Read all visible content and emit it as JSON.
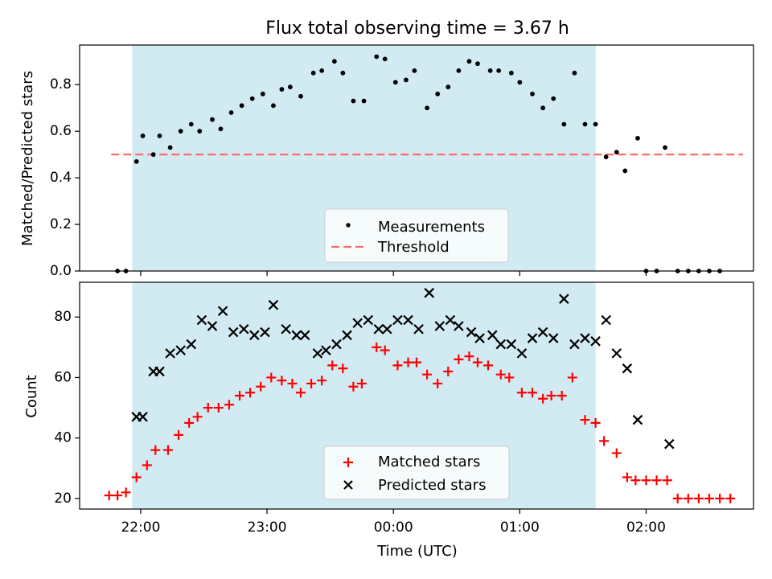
{
  "chart_data": [
    {
      "type": "scatter",
      "title": "Flux total observing time = 3.67 h",
      "xlabel": "",
      "ylabel": "Matched/Predicted stars",
      "xlim": [
        "21:31",
        "02:51"
      ],
      "ylim": [
        0,
        0.97
      ],
      "yticks": [
        0.0,
        0.2,
        0.4,
        0.6,
        0.8
      ],
      "ytick_labels": [
        "0.0",
        "0.2",
        "0.4",
        "0.6",
        "0.8"
      ],
      "xticks": [
        "22:00",
        "23:00",
        "00:00",
        "01:00",
        "02:00"
      ],
      "shaded_span": [
        "21:56",
        "01:36"
      ],
      "shaded_color": "#add8e6",
      "threshold": {
        "name": "Threshold",
        "y": 0.5,
        "x_range": [
          "21:46",
          "02:46"
        ],
        "color": "#ff6b6b"
      },
      "legend_position": "lower center",
      "series": [
        {
          "name": "Measurements",
          "color": "#000000",
          "marker": "dot",
          "points": [
            [
              "21:49",
              0.0
            ],
            [
              "21:53",
              0.0
            ],
            [
              "21:58",
              0.47
            ],
            [
              "22:01",
              0.58
            ],
            [
              "22:06",
              0.5
            ],
            [
              "22:09",
              0.58
            ],
            [
              "22:14",
              0.53
            ],
            [
              "22:19",
              0.6
            ],
            [
              "22:24",
              0.63
            ],
            [
              "22:28",
              0.6
            ],
            [
              "22:34",
              0.65
            ],
            [
              "22:38",
              0.61
            ],
            [
              "22:43",
              0.68
            ],
            [
              "22:48",
              0.71
            ],
            [
              "22:53",
              0.74
            ],
            [
              "22:58",
              0.76
            ],
            [
              "23:03",
              0.71
            ],
            [
              "23:07",
              0.78
            ],
            [
              "23:11",
              0.79
            ],
            [
              "23:16",
              0.75
            ],
            [
              "23:22",
              0.85
            ],
            [
              "23:26",
              0.86
            ],
            [
              "23:32",
              0.9
            ],
            [
              "23:36",
              0.85
            ],
            [
              "23:41",
              0.73
            ],
            [
              "23:46",
              0.73
            ],
            [
              "23:52",
              0.92
            ],
            [
              "23:56",
              0.91
            ],
            [
              "00:01",
              0.81
            ],
            [
              "00:06",
              0.82
            ],
            [
              "00:10",
              0.86
            ],
            [
              "00:16",
              0.7
            ],
            [
              "00:21",
              0.76
            ],
            [
              "00:26",
              0.79
            ],
            [
              "00:31",
              0.86
            ],
            [
              "00:36",
              0.9
            ],
            [
              "00:40",
              0.89
            ],
            [
              "00:46",
              0.86
            ],
            [
              "00:50",
              0.86
            ],
            [
              "00:56",
              0.85
            ],
            [
              "01:00",
              0.81
            ],
            [
              "01:06",
              0.76
            ],
            [
              "01:11",
              0.7
            ],
            [
              "01:16",
              0.74
            ],
            [
              "01:21",
              0.63
            ],
            [
              "01:26",
              0.85
            ],
            [
              "01:31",
              0.63
            ],
            [
              "01:36",
              0.63
            ],
            [
              "01:41",
              0.49
            ],
            [
              "01:46",
              0.51
            ],
            [
              "01:50",
              0.43
            ],
            [
              "01:56",
              0.57
            ],
            [
              "02:00",
              0.0
            ],
            [
              "02:05",
              0.0
            ],
            [
              "02:09",
              0.53
            ],
            [
              "02:15",
              0.0
            ],
            [
              "02:20",
              0.0
            ],
            [
              "02:25",
              0.0
            ],
            [
              "02:30",
              0.0
            ],
            [
              "02:35",
              0.0
            ]
          ]
        }
      ]
    },
    {
      "type": "scatter",
      "title": "",
      "xlabel": "Time (UTC)",
      "ylabel": "Count",
      "xlim": [
        "21:31",
        "02:51"
      ],
      "ylim": [
        16.5,
        91.5
      ],
      "yticks": [
        20,
        40,
        60,
        80
      ],
      "ytick_labels": [
        "20",
        "40",
        "60",
        "80"
      ],
      "xticks": [
        "22:00",
        "23:00",
        "00:00",
        "01:00",
        "02:00"
      ],
      "xtick_labels": [
        "22:00",
        "23:00",
        "00:00",
        "01:00",
        "02:00"
      ],
      "shaded_span": [
        "21:56",
        "01:36"
      ],
      "shaded_color": "#add8e6",
      "legend_position": "lower center",
      "series": [
        {
          "name": "Matched stars",
          "color": "#ff0000",
          "marker": "plus",
          "points": [
            [
              "21:45",
              21
            ],
            [
              "21:49",
              21
            ],
            [
              "21:53",
              22
            ],
            [
              "21:58",
              27
            ],
            [
              "22:03",
              31
            ],
            [
              "22:07",
              36
            ],
            [
              "22:13",
              36
            ],
            [
              "22:18",
              41
            ],
            [
              "22:23",
              45
            ],
            [
              "22:27",
              47
            ],
            [
              "22:32",
              50
            ],
            [
              "22:37",
              50
            ],
            [
              "22:42",
              51
            ],
            [
              "22:47",
              54
            ],
            [
              "22:52",
              55
            ],
            [
              "22:57",
              57
            ],
            [
              "23:02",
              60
            ],
            [
              "23:07",
              59
            ],
            [
              "23:12",
              58
            ],
            [
              "23:16",
              55
            ],
            [
              "23:21",
              58
            ],
            [
              "23:26",
              59
            ],
            [
              "23:31",
              64
            ],
            [
              "23:36",
              63
            ],
            [
              "23:41",
              57
            ],
            [
              "23:45",
              58
            ],
            [
              "23:52",
              70
            ],
            [
              "23:56",
              69
            ],
            [
              "00:02",
              64
            ],
            [
              "00:07",
              65
            ],
            [
              "00:11",
              65
            ],
            [
              "00:16",
              61
            ],
            [
              "00:21",
              58
            ],
            [
              "00:26",
              62
            ],
            [
              "00:31",
              66
            ],
            [
              "00:36",
              67
            ],
            [
              "00:40",
              65
            ],
            [
              "00:45",
              64
            ],
            [
              "00:51",
              61
            ],
            [
              "00:55",
              60
            ],
            [
              "01:01",
              55
            ],
            [
              "01:06",
              55
            ],
            [
              "01:11",
              53
            ],
            [
              "01:15",
              54
            ],
            [
              "01:20",
              54
            ],
            [
              "01:25",
              60
            ],
            [
              "01:31",
              46
            ],
            [
              "01:36",
              45
            ],
            [
              "01:40",
              39
            ],
            [
              "01:46",
              35
            ],
            [
              "01:51",
              27
            ],
            [
              "01:55",
              26
            ],
            [
              "02:00",
              26
            ],
            [
              "02:05",
              26
            ],
            [
              "02:10",
              26
            ],
            [
              "02:15",
              20
            ],
            [
              "02:20",
              20
            ],
            [
              "02:25",
              20
            ],
            [
              "02:30",
              20
            ],
            [
              "02:35",
              20
            ],
            [
              "02:40",
              20
            ]
          ]
        },
        {
          "name": "Predicted stars",
          "color": "#000000",
          "marker": "x",
          "points": [
            [
              "21:58",
              47
            ],
            [
              "22:01",
              47
            ],
            [
              "22:06",
              62
            ],
            [
              "22:09",
              62
            ],
            [
              "22:14",
              68
            ],
            [
              "22:19",
              69
            ],
            [
              "22:24",
              71
            ],
            [
              "22:29",
              79
            ],
            [
              "22:34",
              77
            ],
            [
              "22:39",
              82
            ],
            [
              "22:44",
              75
            ],
            [
              "22:49",
              76
            ],
            [
              "22:54",
              74
            ],
            [
              "22:59",
              75
            ],
            [
              "23:03",
              84
            ],
            [
              "23:09",
              76
            ],
            [
              "23:14",
              74
            ],
            [
              "23:18",
              74
            ],
            [
              "23:24",
              68
            ],
            [
              "23:28",
              69
            ],
            [
              "23:33",
              71
            ],
            [
              "23:38",
              74
            ],
            [
              "23:43",
              78
            ],
            [
              "23:48",
              79
            ],
            [
              "23:53",
              76
            ],
            [
              "23:57",
              76
            ],
            [
              "00:02",
              79
            ],
            [
              "00:07",
              79
            ],
            [
              "00:12",
              76
            ],
            [
              "00:17",
              88
            ],
            [
              "00:22",
              77
            ],
            [
              "00:27",
              79
            ],
            [
              "00:31",
              77
            ],
            [
              "00:37",
              75
            ],
            [
              "00:41",
              73
            ],
            [
              "00:47",
              74
            ],
            [
              "00:51",
              71
            ],
            [
              "00:56",
              71
            ],
            [
              "01:01",
              68
            ],
            [
              "01:06",
              73
            ],
            [
              "01:11",
              75
            ],
            [
              "01:16",
              73
            ],
            [
              "01:21",
              86
            ],
            [
              "01:26",
              71
            ],
            [
              "01:31",
              73
            ],
            [
              "01:36",
              72
            ],
            [
              "01:41",
              79
            ],
            [
              "01:46",
              68
            ],
            [
              "01:51",
              63
            ],
            [
              "01:56",
              46
            ],
            [
              "02:11",
              38
            ]
          ]
        }
      ]
    }
  ]
}
